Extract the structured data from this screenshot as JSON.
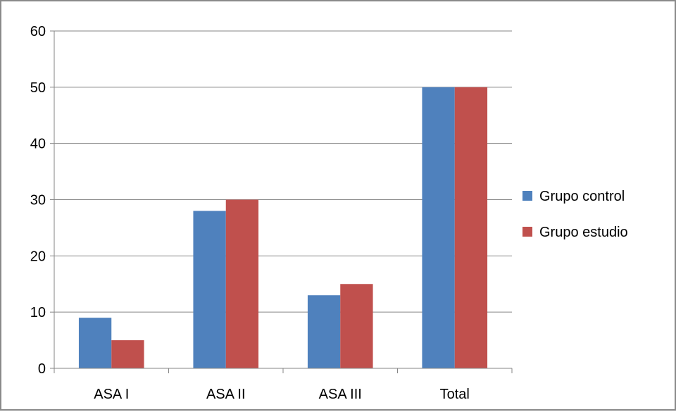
{
  "chart_data": {
    "type": "bar",
    "categories": [
      "ASA I",
      "ASA II",
      "ASA III",
      "Total"
    ],
    "series": [
      {
        "name": "Grupo control",
        "color": "#4f81bd",
        "values": [
          9,
          28,
          13,
          50
        ]
      },
      {
        "name": "Grupo estudio",
        "color": "#c0504d",
        "values": [
          5,
          30,
          15,
          50
        ]
      }
    ],
    "ylim": [
      0,
      60
    ],
    "yticks": [
      0,
      10,
      20,
      30,
      40,
      50,
      60
    ],
    "grid": true,
    "legend_position": "right"
  }
}
